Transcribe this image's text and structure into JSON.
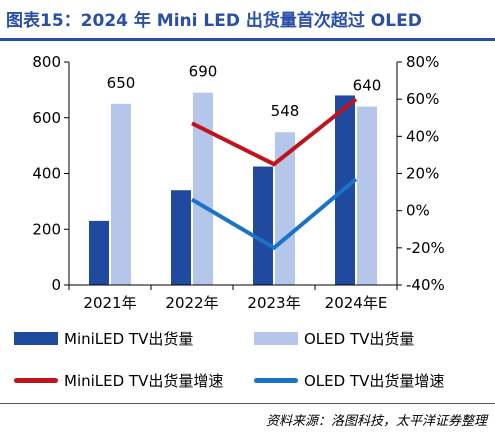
{
  "title": "图表15：2024 年 Mini LED 出货量首次超过 OLED",
  "source": "资料来源：洛图科技，太平洋证券整理",
  "colors": {
    "title": "#2a4fa8",
    "miniled_bar": "#1f4aa0",
    "oled_bar": "#b4c6ea",
    "miniled_line": "#c0141c",
    "oled_line": "#1a73c7"
  },
  "legend": [
    {
      "label": "MiniLED TV出货量",
      "kind": "bar",
      "color": "#1f4aa0"
    },
    {
      "label": "OLED TV出货量",
      "kind": "bar",
      "color": "#b4c6ea"
    },
    {
      "label": "MiniLED TV出货量增速",
      "kind": "line",
      "color": "#c0141c"
    },
    {
      "label": "OLED TV出货量增速",
      "kind": "line",
      "color": "#1a73c7"
    }
  ],
  "chart_data": {
    "type": "bar",
    "categories": [
      "2021年",
      "2022年",
      "2023年",
      "2024年E"
    ],
    "series": [
      {
        "name": "MiniLED TV出货量",
        "type": "bar",
        "axis": "left",
        "values": [
          230,
          340,
          425,
          680
        ]
      },
      {
        "name": "OLED TV出货量",
        "type": "bar",
        "axis": "left",
        "values": [
          650,
          690,
          548,
          640
        ],
        "data_labels": [
          "650",
          "690",
          "548",
          "640"
        ]
      },
      {
        "name": "MiniLED TV出货量增速",
        "type": "line",
        "axis": "right",
        "values": [
          null,
          47,
          25,
          60
        ]
      },
      {
        "name": "OLED TV出货量增速",
        "type": "line",
        "axis": "right",
        "values": [
          null,
          6,
          -20,
          17
        ]
      }
    ],
    "ylim_left": [
      0,
      800
    ],
    "yticks_left": [
      "0",
      "200",
      "400",
      "600",
      "800"
    ],
    "ylim_right": [
      -40,
      80
    ],
    "yticks_right": [
      "-40%",
      "-20%",
      "0%",
      "20%",
      "40%",
      "60%",
      "80%"
    ],
    "legend_position": "bottom",
    "grid": false
  }
}
